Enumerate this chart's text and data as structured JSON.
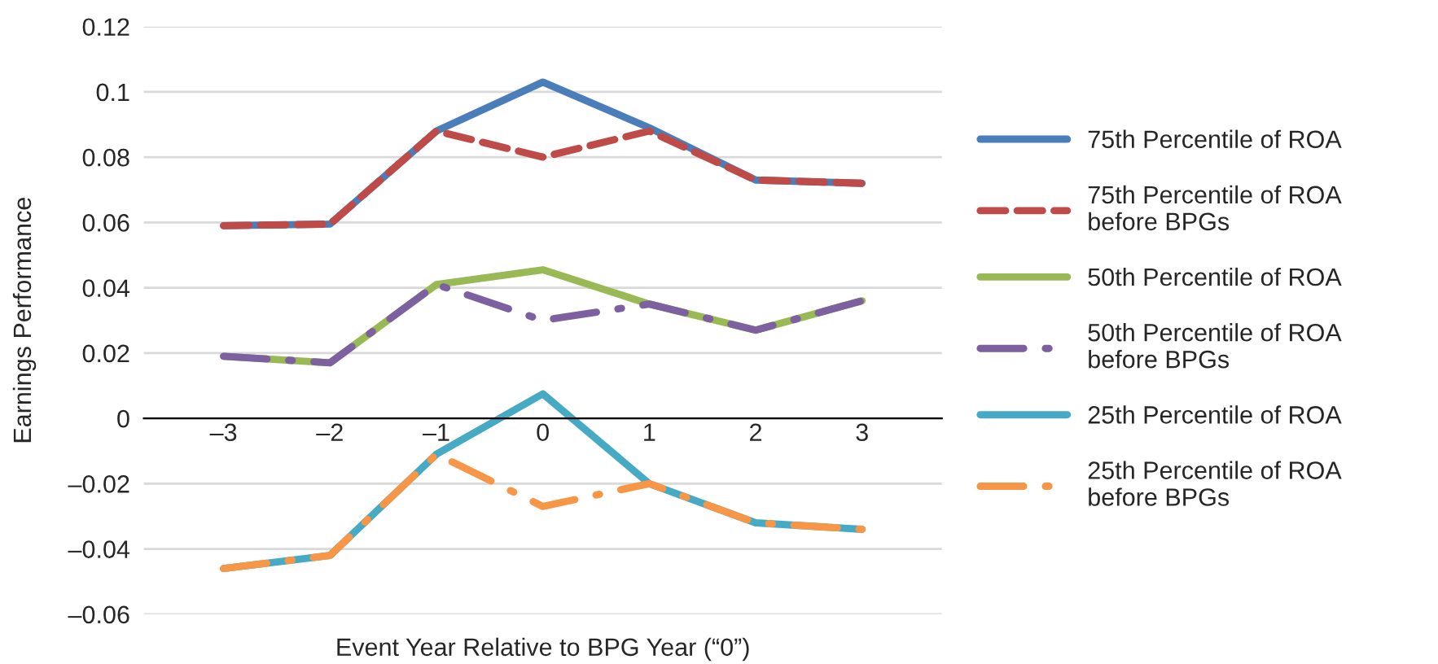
{
  "chart_data": {
    "type": "line",
    "xlabel": "Event Year Relative to BPG Year (“0”)",
    "ylabel": "Earnings Performance",
    "categories": [
      "–3",
      "–2",
      "–1",
      "0",
      "1",
      "2",
      "3"
    ],
    "series": [
      {
        "name": "75th Percentile of ROA",
        "color": "#4a7ebb",
        "line_style": "solid",
        "values": [
          0.059,
          0.0595,
          0.088,
          0.103,
          0.089,
          0.073,
          0.072
        ]
      },
      {
        "name": "75th Percentile of ROA before BPGs",
        "color": "#be4b48",
        "line_style": "dashed",
        "values": [
          0.059,
          0.0595,
          0.088,
          0.08,
          0.088,
          0.073,
          0.072
        ]
      },
      {
        "name": "50th Percentile of ROA",
        "color": "#98b954",
        "line_style": "solid",
        "values": [
          0.019,
          0.017,
          0.041,
          0.0455,
          0.035,
          0.027,
          0.036
        ]
      },
      {
        "name": "50th Percentile of ROA before BPGs",
        "color": "#7d60a0",
        "line_style": "dashdot",
        "values": [
          0.019,
          0.017,
          0.041,
          0.03,
          0.035,
          0.027,
          0.036
        ]
      },
      {
        "name": "25th Percentile of ROA",
        "color": "#46aac5",
        "line_style": "solid",
        "values": [
          -0.046,
          -0.042,
          -0.011,
          0.0075,
          -0.02,
          -0.032,
          -0.034
        ]
      },
      {
        "name": "25th Percentile of ROA before BPGs",
        "color": "#f79646",
        "line_style": "dashdot",
        "values": [
          -0.046,
          -0.042,
          -0.011,
          -0.027,
          -0.02,
          -0.032,
          -0.034
        ]
      }
    ],
    "ylim": [
      -0.06,
      0.12
    ],
    "yticks": [
      {
        "value": -0.06,
        "label": "–0.06"
      },
      {
        "value": -0.04,
        "label": "–0.04"
      },
      {
        "value": -0.02,
        "label": "–0.02"
      },
      0,
      0.02,
      0.04,
      0.06,
      0.08,
      0.1,
      0.12
    ],
    "grid": "y",
    "legend": "right",
    "marker": "none"
  }
}
